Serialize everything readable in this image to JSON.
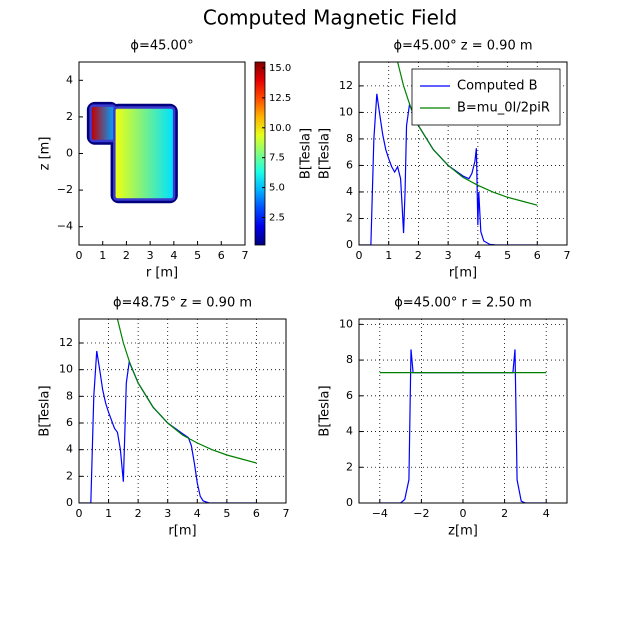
{
  "title": "Computed Magnetic Field",
  "chart_data": [
    {
      "type": "heatmap",
      "title": "ϕ=45.00°",
      "xlabel": "r [m]",
      "ylabel": "z [m]",
      "xlim": [
        0,
        7
      ],
      "ylim": [
        -5,
        5
      ],
      "xticks": [
        0,
        1,
        2,
        3,
        4,
        5,
        6,
        7
      ],
      "yticks": [
        {
          "value": -4,
          "label": "−4"
        },
        {
          "value": -2,
          "label": "−2"
        },
        0,
        2,
        4
      ],
      "regions": [
        {
          "x": [
            0.5,
            1.5
          ],
          "y": [
            0.7,
            2.6
          ],
          "values": [
            14.5,
            4.5
          ]
        },
        {
          "x": [
            1.5,
            4.0
          ],
          "y": [
            -2.5,
            2.5
          ],
          "values": [
            9.5,
            5.5
          ]
        }
      ],
      "colorbar": {
        "label": "B[Tesla]",
        "lim": [
          0.2,
          15.5
        ],
        "ticks": [
          2.5,
          {
            "value": 5,
            "label": "5.0"
          },
          {
            "value": 7.5,
            "label": "7.5"
          },
          {
            "value": 10,
            "label": "10.0"
          },
          {
            "value": 12.5,
            "label": "12.5"
          },
          {
            "value": 15,
            "label": "15.0"
          }
        ]
      }
    },
    {
      "type": "line",
      "title": "ϕ=45.00°  z = 0.90 m",
      "xlabel": "r[m]",
      "ylabel": "B[Tesla]",
      "xlim": [
        0,
        7
      ],
      "ylim": [
        0,
        13.8
      ],
      "xticks": [
        0,
        1,
        2,
        3,
        4,
        5,
        6,
        7
      ],
      "yticks": [
        0,
        2,
        4,
        6,
        8,
        10,
        12
      ],
      "grid": true,
      "legend": "upper right",
      "series": [
        {
          "name": "Computed B",
          "color": "#0000ff",
          "x": [
            0,
            0.4,
            0.45,
            0.5,
            0.6,
            0.7,
            0.8,
            0.9,
            1.0,
            1.1,
            1.2,
            1.3,
            1.4,
            1.45,
            1.5,
            1.55,
            1.6,
            1.7,
            2.0,
            2.5,
            3.0,
            3.5,
            3.7,
            3.8,
            3.9,
            3.95,
            4.0,
            4.03,
            4.1,
            4.2,
            4.4,
            4.6,
            6.0
          ],
          "values": [
            0,
            0,
            4,
            8,
            11.4,
            9.8,
            8.3,
            7.2,
            6.5,
            5.9,
            5.5,
            5.9,
            5.0,
            3.0,
            0.9,
            4.0,
            9.0,
            10.6,
            9.0,
            7.2,
            6.0,
            5.2,
            5.0,
            5.4,
            6.3,
            7.3,
            1.5,
            4.0,
            1.0,
            0.3,
            0.05,
            0,
            0
          ]
        },
        {
          "name": "B=mu_0I/2piR",
          "color": "#008000",
          "x": [
            1.3,
            1.5,
            1.75,
            2,
            2.5,
            3,
            3.5,
            4,
            4.5,
            5,
            5.5,
            6
          ],
          "values": [
            13.8,
            12,
            10.3,
            9,
            7.2,
            6,
            5.1,
            4.5,
            4,
            3.6,
            3.3,
            3
          ]
        }
      ]
    },
    {
      "type": "line",
      "title": "ϕ=48.75°  z = 0.90 m",
      "xlabel": "r[m]",
      "ylabel": "B[Tesla]",
      "xlim": [
        0,
        7
      ],
      "ylim": [
        0,
        13.8
      ],
      "xticks": [
        0,
        1,
        2,
        3,
        4,
        5,
        6,
        7
      ],
      "yticks": [
        0,
        2,
        4,
        6,
        8,
        10,
        12
      ],
      "grid": true,
      "series": [
        {
          "color": "#0000ff",
          "x": [
            0,
            0.4,
            0.45,
            0.5,
            0.6,
            0.7,
            0.8,
            0.9,
            1.0,
            1.1,
            1.2,
            1.3,
            1.4,
            1.5,
            1.6,
            1.7,
            2.0,
            2.5,
            3.0,
            3.5,
            3.7,
            3.8,
            3.9,
            4.0,
            4.1,
            4.2,
            4.4,
            6.0
          ],
          "values": [
            0,
            0,
            4,
            8,
            11.4,
            10,
            8.5,
            7.5,
            6.8,
            6.2,
            5.6,
            5.3,
            4,
            1.6,
            9.0,
            10.6,
            9.0,
            7.2,
            6.0,
            5.2,
            4.9,
            4.3,
            3,
            1.5,
            0.5,
            0.15,
            0,
            0
          ]
        },
        {
          "color": "#008000",
          "x": [
            1.3,
            1.5,
            1.75,
            2,
            2.5,
            3,
            3.5,
            4,
            4.5,
            5,
            5.5,
            6
          ],
          "values": [
            13.8,
            12,
            10.3,
            9,
            7.2,
            6,
            5.1,
            4.5,
            4,
            3.6,
            3.3,
            3
          ]
        }
      ]
    },
    {
      "type": "line",
      "title": "ϕ=45.00°  r = 2.50 m",
      "xlabel": "z[m]",
      "ylabel": "B[Tesla]",
      "xlim": [
        -5,
        5
      ],
      "ylim": [
        0,
        10.3
      ],
      "xticks": [
        {
          "value": -4,
          "label": "−4"
        },
        {
          "value": -2,
          "label": "−2"
        },
        0,
        2,
        4
      ],
      "yticks": [
        0,
        2,
        4,
        6,
        8,
        10
      ],
      "grid": true,
      "series": [
        {
          "color": "#0000ff",
          "x": [
            -4,
            -3,
            -2.8,
            -2.6,
            -2.5,
            -2.4,
            2.4,
            2.5,
            2.6,
            2.8,
            3,
            4
          ],
          "values": [
            0,
            0,
            0.2,
            1.3,
            8.6,
            7.3,
            7.3,
            8.6,
            1.3,
            0.1,
            0,
            0
          ]
        },
        {
          "color": "#008000",
          "x": [
            -4,
            4
          ],
          "values": [
            7.3,
            7.3
          ]
        }
      ]
    }
  ]
}
